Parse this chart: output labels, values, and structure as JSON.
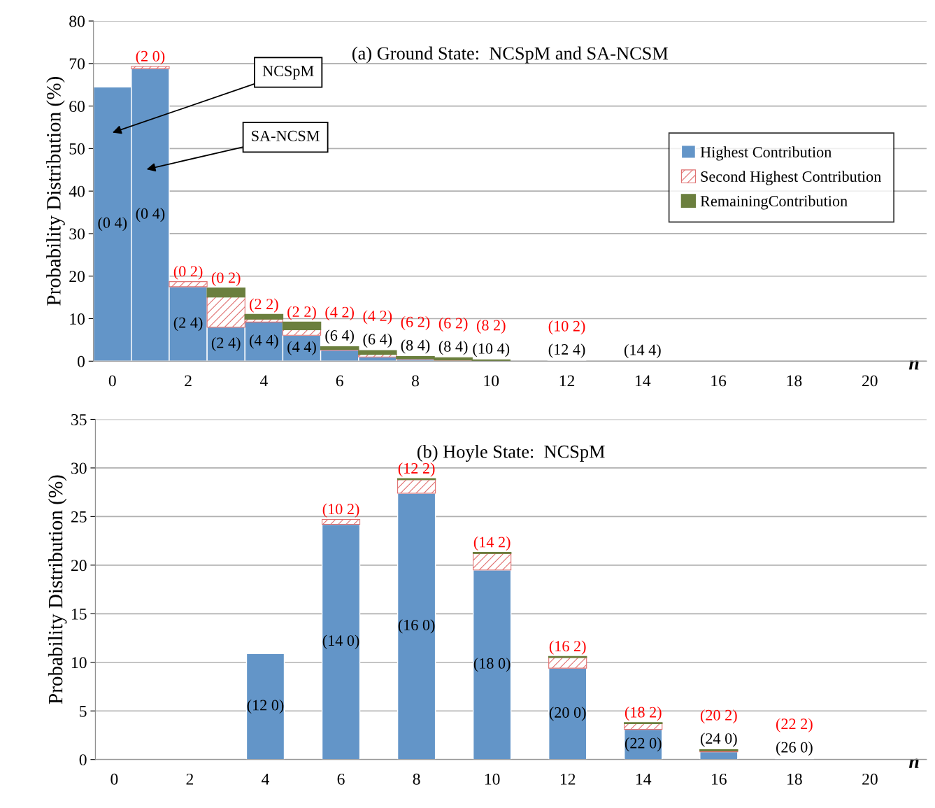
{
  "chart_data": [
    {
      "type": "bar",
      "stacked": true,
      "title": "(a) Ground State:  NCSpM and SA-NCSM",
      "xlabel": "n",
      "ylabel": "Probability Distribution (%)",
      "x": [
        0,
        1,
        2,
        3,
        4,
        5,
        6,
        7,
        8,
        9,
        10,
        11,
        12,
        13,
        14,
        15,
        16,
        17,
        18,
        19,
        20,
        21
      ],
      "series": [
        {
          "name": "Highest Contribution",
          "color": "#6395c8",
          "values": [
            64.5,
            68.8,
            17.5,
            8.0,
            9.2,
            6.1,
            2.6,
            1.0,
            0.5,
            0.2,
            0.1,
            0,
            0.1,
            0,
            0,
            0,
            0,
            0,
            0,
            0,
            0,
            0
          ],
          "value_labels": [
            "(0 4)",
            "(0 4)",
            "(2 4)",
            "(2 4)",
            "(4 4)",
            "(4 4)",
            "(6 4)",
            "(6 4)",
            "(8 4)",
            "(8 4)",
            "(10 4)",
            null,
            "(12 4)",
            null,
            "(14 4)",
            null,
            null,
            null,
            null,
            null,
            null,
            null
          ]
        },
        {
          "name": "Second Highest Contribution",
          "color": "#e07070",
          "values": [
            0,
            0.5,
            1.2,
            7.1,
            0.7,
            1.3,
            0.2,
            0.6,
            0.1,
            0.1,
            0,
            0,
            0,
            0,
            0,
            0,
            0,
            0,
            0,
            0,
            0,
            0
          ],
          "value_labels": [
            null,
            "(2 0)",
            "(0 2)",
            "(0 2)",
            "(2 2)",
            "(2 2)",
            "(4 2)",
            "(4 2)",
            "(6 2)",
            "(6 2)",
            "(8 2)",
            null,
            "(10 2)",
            null,
            null,
            null,
            null,
            null,
            null,
            null,
            null,
            null
          ]
        },
        {
          "name": "RemainingContribution",
          "color": "#6b7f3e",
          "values": [
            0,
            0,
            0,
            2.1,
            1.1,
            1.8,
            0.6,
            0.9,
            0.5,
            0.5,
            0.2,
            0,
            0,
            0,
            0,
            0,
            0,
            0,
            0,
            0,
            0,
            0
          ]
        }
      ],
      "xlim": [
        -0.5,
        21.5
      ],
      "xticks": [
        0,
        2,
        4,
        6,
        8,
        10,
        12,
        14,
        16,
        18,
        20
      ],
      "ylim": [
        0,
        80
      ],
      "yticks": [
        0,
        10,
        20,
        30,
        40,
        50,
        60,
        70,
        80
      ],
      "grid": "y",
      "legend": "center right",
      "annotations": [
        "NCSpM",
        "SA-NCSM"
      ]
    },
    {
      "type": "bar",
      "stacked": true,
      "title": "(b) Hoyle State:  NCSpM",
      "xlabel": "n",
      "ylabel": "Probability Distribution (%)",
      "x": [
        4,
        6,
        8,
        10,
        12,
        14,
        16,
        18
      ],
      "series": [
        {
          "color": "#6395c8",
          "values": [
            10.9,
            24.2,
            27.4,
            19.5,
            9.4,
            3.1,
            0.8,
            0.1
          ],
          "value_labels": [
            "(12 0)",
            "(14 0)",
            "(16 0)",
            "(18 0)",
            "(20 0)",
            "(22 0)",
            "(24 0)",
            "(26 0)"
          ]
        },
        {
          "color": "#e07070",
          "values": [
            0,
            0.5,
            1.4,
            1.7,
            1.1,
            0.6,
            0.1,
            0
          ],
          "value_labels": [
            null,
            "(10 2)",
            "(12 2)",
            "(14 2)",
            "(16 2)",
            "(18 2)",
            "(20 2)",
            "(22 2)"
          ]
        },
        {
          "color": "#6b7f3e",
          "values": [
            0,
            0,
            0.1,
            0.1,
            0.1,
            0.1,
            0.1,
            0
          ]
        }
      ],
      "xlim": [
        -0.5,
        21.5
      ],
      "xticks": [
        0,
        2,
        4,
        6,
        8,
        10,
        12,
        14,
        16,
        18,
        20
      ],
      "ylim": [
        0,
        35
      ],
      "yticks": [
        0,
        5,
        10,
        15,
        20,
        25,
        30,
        35
      ],
      "grid": "y",
      "legend": false
    }
  ]
}
